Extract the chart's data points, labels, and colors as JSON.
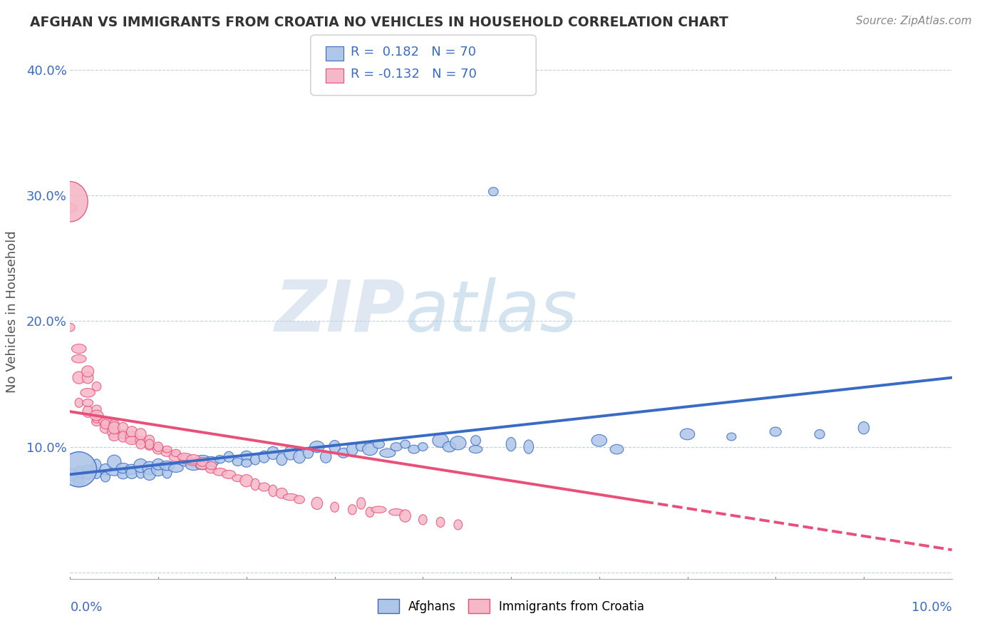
{
  "title": "AFGHAN VS IMMIGRANTS FROM CROATIA NO VEHICLES IN HOUSEHOLD CORRELATION CHART",
  "source": "Source: ZipAtlas.com",
  "ylabel": "No Vehicles in Household",
  "xlim": [
    0.0,
    0.1
  ],
  "ylim": [
    -0.005,
    0.42
  ],
  "yticks": [
    0.0,
    0.1,
    0.2,
    0.3,
    0.4
  ],
  "ytick_labels": [
    "",
    "10.0%",
    "20.0%",
    "30.0%",
    "40.0%"
  ],
  "r_afghan": 0.182,
  "n_afghan": 70,
  "r_croatia": -0.132,
  "n_croatia": 70,
  "color_afghan": "#aec6e8",
  "color_croatia": "#f5b8c8",
  "line_color_afghan": "#3a6bc4",
  "line_color_croatia": "#e8507a",
  "watermark_zip": "ZIP",
  "watermark_atlas": "atlas",
  "legend_label_afghan": "Afghans",
  "legend_label_croatia": "Immigrants from Croatia",
  "afghan_line": [
    [
      0.0,
      0.078
    ],
    [
      0.1,
      0.155
    ]
  ],
  "croatia_line": [
    [
      0.0,
      0.128
    ],
    [
      0.1,
      0.018
    ]
  ],
  "croatia_line_solid_end": 0.065,
  "bg_color": "#ffffff",
  "grid_color": "#c0d0e0",
  "afghan_scatter": [
    [
      0.001,
      0.08
    ],
    [
      0.001,
      0.075
    ],
    [
      0.002,
      0.082
    ],
    [
      0.002,
      0.078
    ],
    [
      0.003,
      0.079
    ],
    [
      0.003,
      0.085
    ],
    [
      0.004,
      0.082
    ],
    [
      0.004,
      0.076
    ],
    [
      0.005,
      0.08
    ],
    [
      0.005,
      0.088
    ],
    [
      0.006,
      0.078
    ],
    [
      0.006,
      0.083
    ],
    [
      0.007,
      0.082
    ],
    [
      0.007,
      0.079
    ],
    [
      0.008,
      0.08
    ],
    [
      0.008,
      0.085
    ],
    [
      0.009,
      0.083
    ],
    [
      0.009,
      0.078
    ],
    [
      0.01,
      0.082
    ],
    [
      0.01,
      0.086
    ],
    [
      0.011,
      0.08
    ],
    [
      0.011,
      0.085
    ],
    [
      0.012,
      0.083
    ],
    [
      0.013,
      0.088
    ],
    [
      0.014,
      0.085
    ],
    [
      0.015,
      0.09
    ],
    [
      0.015,
      0.085
    ],
    [
      0.016,
      0.088
    ],
    [
      0.017,
      0.09
    ],
    [
      0.018,
      0.092
    ],
    [
      0.019,
      0.088
    ],
    [
      0.02,
      0.093
    ],
    [
      0.02,
      0.087
    ],
    [
      0.021,
      0.09
    ],
    [
      0.022,
      0.092
    ],
    [
      0.023,
      0.095
    ],
    [
      0.024,
      0.09
    ],
    [
      0.025,
      0.095
    ],
    [
      0.026,
      0.092
    ],
    [
      0.027,
      0.095
    ],
    [
      0.028,
      0.1
    ],
    [
      0.029,
      0.092
    ],
    [
      0.03,
      0.1
    ],
    [
      0.031,
      0.095
    ],
    [
      0.032,
      0.098
    ],
    [
      0.033,
      0.1
    ],
    [
      0.034,
      0.098
    ],
    [
      0.035,
      0.102
    ],
    [
      0.036,
      0.095
    ],
    [
      0.037,
      0.1
    ],
    [
      0.038,
      0.102
    ],
    [
      0.039,
      0.098
    ],
    [
      0.04,
      0.1
    ],
    [
      0.042,
      0.105
    ],
    [
      0.043,
      0.1
    ],
    [
      0.044,
      0.103
    ],
    [
      0.046,
      0.105
    ],
    [
      0.046,
      0.098
    ],
    [
      0.048,
      0.303
    ],
    [
      0.05,
      0.102
    ],
    [
      0.052,
      0.1
    ],
    [
      0.06,
      0.105
    ],
    [
      0.062,
      0.098
    ],
    [
      0.07,
      0.11
    ],
    [
      0.075,
      0.108
    ],
    [
      0.08,
      0.112
    ],
    [
      0.085,
      0.11
    ],
    [
      0.09,
      0.115
    ],
    [
      0.0,
      0.078
    ],
    [
      0.001,
      0.072
    ]
  ],
  "croatia_scatter": [
    [
      0.0,
      0.29
    ],
    [
      0.0,
      0.195
    ],
    [
      0.001,
      0.155
    ],
    [
      0.001,
      0.178
    ],
    [
      0.001,
      0.135
    ],
    [
      0.002,
      0.143
    ],
    [
      0.002,
      0.155
    ],
    [
      0.002,
      0.128
    ],
    [
      0.002,
      0.135
    ],
    [
      0.003,
      0.12
    ],
    [
      0.003,
      0.13
    ],
    [
      0.003,
      0.122
    ],
    [
      0.003,
      0.125
    ],
    [
      0.004,
      0.115
    ],
    [
      0.004,
      0.12
    ],
    [
      0.004,
      0.118
    ],
    [
      0.005,
      0.112
    ],
    [
      0.005,
      0.118
    ],
    [
      0.005,
      0.108
    ],
    [
      0.005,
      0.115
    ],
    [
      0.006,
      0.11
    ],
    [
      0.006,
      0.115
    ],
    [
      0.006,
      0.108
    ],
    [
      0.007,
      0.108
    ],
    [
      0.007,
      0.112
    ],
    [
      0.007,
      0.105
    ],
    [
      0.008,
      0.105
    ],
    [
      0.008,
      0.11
    ],
    [
      0.008,
      0.102
    ],
    [
      0.009,
      0.1
    ],
    [
      0.009,
      0.105
    ],
    [
      0.009,
      0.102
    ],
    [
      0.01,
      0.098
    ],
    [
      0.01,
      0.1
    ],
    [
      0.011,
      0.095
    ],
    [
      0.011,
      0.098
    ],
    [
      0.012,
      0.092
    ],
    [
      0.012,
      0.095
    ],
    [
      0.013,
      0.09
    ],
    [
      0.013,
      0.092
    ],
    [
      0.014,
      0.088
    ],
    [
      0.014,
      0.09
    ],
    [
      0.015,
      0.085
    ],
    [
      0.015,
      0.088
    ],
    [
      0.016,
      0.082
    ],
    [
      0.016,
      0.085
    ],
    [
      0.017,
      0.08
    ],
    [
      0.018,
      0.078
    ],
    [
      0.019,
      0.075
    ],
    [
      0.02,
      0.073
    ],
    [
      0.021,
      0.07
    ],
    [
      0.022,
      0.068
    ],
    [
      0.023,
      0.065
    ],
    [
      0.024,
      0.063
    ],
    [
      0.025,
      0.06
    ],
    [
      0.026,
      0.058
    ],
    [
      0.028,
      0.055
    ],
    [
      0.03,
      0.052
    ],
    [
      0.032,
      0.05
    ],
    [
      0.033,
      0.055
    ],
    [
      0.034,
      0.048
    ],
    [
      0.035,
      0.05
    ],
    [
      0.037,
      0.048
    ],
    [
      0.038,
      0.045
    ],
    [
      0.04,
      0.042
    ],
    [
      0.042,
      0.04
    ],
    [
      0.044,
      0.038
    ],
    [
      0.001,
      0.17
    ],
    [
      0.002,
      0.16
    ],
    [
      0.003,
      0.148
    ]
  ]
}
